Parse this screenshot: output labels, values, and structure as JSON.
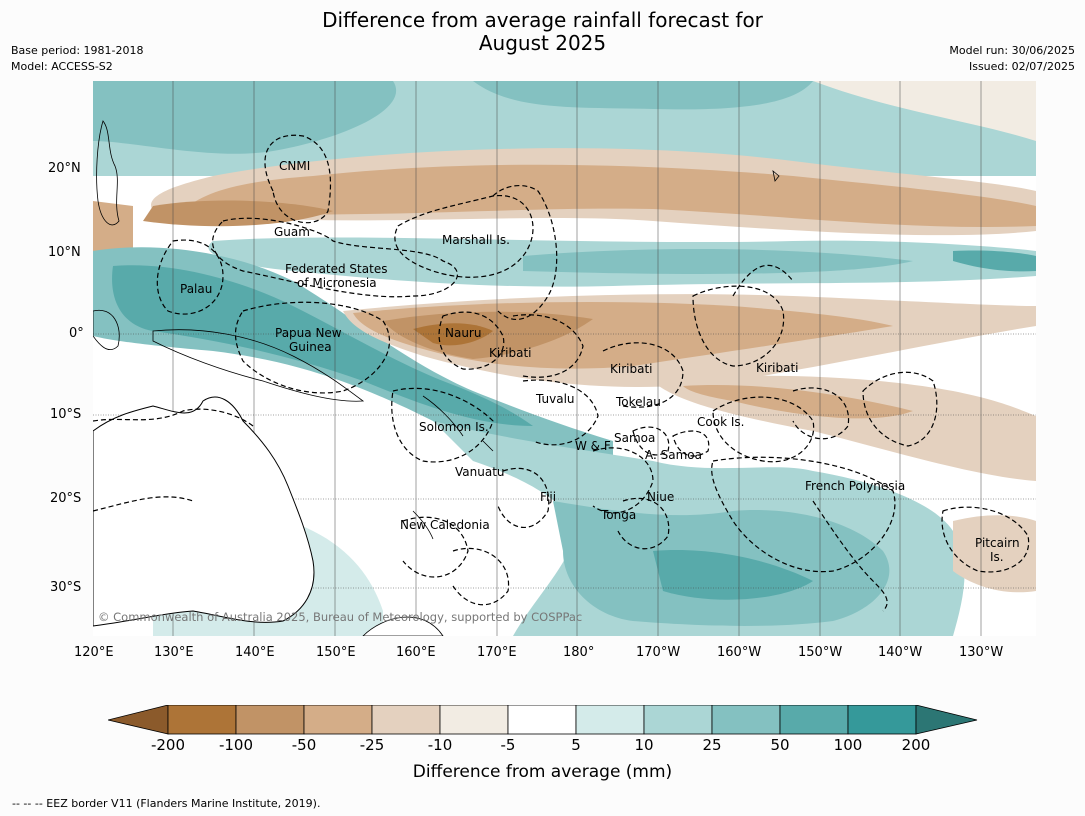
{
  "title": {
    "line1": "Difference from average rainfall forecast for",
    "line2": "August 2025"
  },
  "meta": {
    "base_period": "Base period: 1981-2018",
    "model": "Model: ACCESS-S2",
    "model_run": "Model run: 30/06/2025",
    "issued": "Issued: 02/07/2025"
  },
  "map": {
    "copyright": "© Commonwealth of Australia 2025, Bureau of Meteorology, supported by COSPPac",
    "regions": [
      "CNMI",
      "Guam",
      "Marshall Is.",
      "Federated States",
      "of Micronesia",
      "Palau",
      "Papua New",
      "Guinea",
      "Nauru",
      "Kiribati",
      "Kiribati",
      "Kiribati",
      "Tuvalu",
      "Tokelau",
      "Cook Is.",
      "Solomon Is.",
      "W & F",
      "Samoa",
      "A. Samoa",
      "Vanuatu",
      "Fiji",
      "Niue",
      "Tonga",
      "New Caledonia",
      "French Polynesia",
      "Pitcairn",
      "Is."
    ],
    "lat_labels": [
      "20°N",
      "10°N",
      "0°",
      "10°S",
      "20°S",
      "30°S"
    ],
    "lon_labels": [
      "120°E",
      "130°E",
      "140°E",
      "150°E",
      "160°E",
      "170°E",
      "180°",
      "170°W",
      "160°W",
      "150°W",
      "140°W",
      "130°W"
    ]
  },
  "colorbar": {
    "ticks": [
      "-200",
      "-100",
      "-50",
      "-25",
      "-10",
      "-5",
      "5",
      "10",
      "25",
      "50",
      "100",
      "200"
    ],
    "colors": [
      "#8b5a2b",
      "#ad7437",
      "#c19366",
      "#d4ad88",
      "#e4d1bf",
      "#f2ece3",
      "#ffffff",
      "#d4ebea",
      "#abd6d5",
      "#84c1c1",
      "#58aaaa",
      "#35999a",
      "#2c7674"
    ],
    "label": "Difference from average (mm)"
  },
  "footer": "--  --  -- EEZ border V11 (Flanders Marine Institute, 2019)."
}
